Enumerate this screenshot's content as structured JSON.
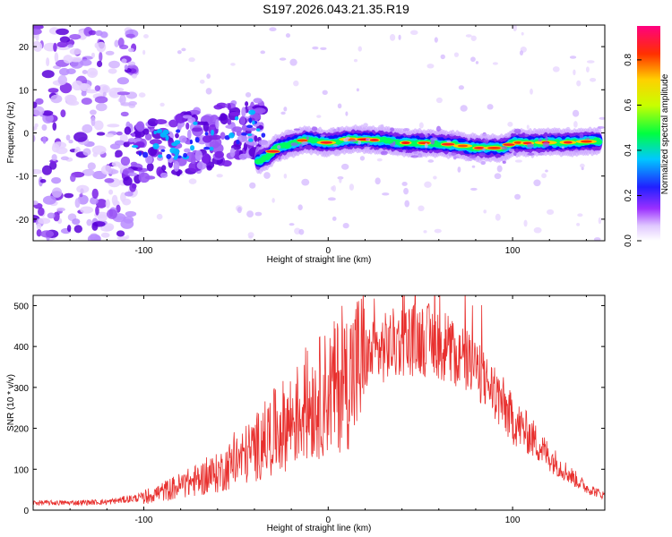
{
  "title": "S197.2026.043.21.35.R19",
  "chart_data": [
    {
      "type": "heatmap",
      "name": "spectrogram",
      "xlabel": "Height of straight line (km)",
      "ylabel": "Frequency (Hz)",
      "xlim": [
        -160,
        150
      ],
      "ylim": [
        -25,
        25
      ],
      "xticks": [
        -100,
        0,
        100
      ],
      "xtick_labels": [
        "-100",
        "0",
        "100"
      ],
      "yticks": [
        -20,
        -10,
        0,
        10,
        20
      ],
      "ytick_labels": [
        "-20",
        "-10",
        "0",
        "10",
        "20"
      ],
      "ridge": {
        "x": [
          -38,
          -33,
          -28,
          -20,
          -12,
          -5,
          0,
          5,
          10,
          20,
          30,
          40,
          50,
          60,
          70,
          80,
          90,
          95,
          100,
          110,
          120,
          130,
          140,
          148
        ],
        "y": [
          -6.5,
          -5.5,
          -3.5,
          -2.5,
          -1.5,
          -2,
          -2.3,
          -2,
          -1.5,
          -1.5,
          -1.8,
          -2.3,
          -2.3,
          -2.5,
          -2.8,
          -3.5,
          -3.5,
          -3.5,
          -2.2,
          -2.4,
          -2.2,
          -2.2,
          -2.0,
          -1.8
        ]
      },
      "colorbar": {
        "label": "Normalized spectral amplitude",
        "range": [
          0,
          0.95
        ],
        "ticks": [
          0.0,
          0.2,
          0.4,
          0.6,
          0.8
        ],
        "tick_labels": [
          "0.0",
          "0.2",
          "0.4",
          "0.6",
          "0.8"
        ],
        "colors": [
          "#ffffff",
          "#8000ff",
          "#0000ff",
          "#00c8ff",
          "#00ff00",
          "#ffff00",
          "#ff8000",
          "#ff0000",
          "#ff0080"
        ]
      }
    },
    {
      "type": "line",
      "name": "snr",
      "xlabel": "Height of straight line (km)",
      "ylabel": "SNR (10 * v/v)",
      "xlim": [
        -160,
        150
      ],
      "ylim": [
        0,
        525
      ],
      "xticks": [
        -100,
        0,
        100
      ],
      "xtick_labels": [
        "-100",
        "0",
        "100"
      ],
      "yticks": [
        0,
        100,
        200,
        300,
        400,
        500
      ],
      "ytick_labels": [
        "0",
        "100",
        "200",
        "300",
        "400",
        "500"
      ],
      "color": "#e8302e",
      "envelope": {
        "x": [
          -160,
          -140,
          -120,
          -100,
          -90,
          -80,
          -60,
          -40,
          -30,
          -20,
          -10,
          0,
          10,
          20,
          30,
          40,
          50,
          60,
          70,
          80,
          90,
          100,
          110,
          120,
          130,
          140,
          150
        ],
        "y": [
          18,
          18,
          20,
          32,
          45,
          60,
          90,
          150,
          190,
          220,
          260,
          290,
          320,
          370,
          395,
          415,
          420,
          410,
          380,
          345,
          290,
          220,
          180,
          130,
          90,
          55,
          35
        ]
      }
    }
  ]
}
